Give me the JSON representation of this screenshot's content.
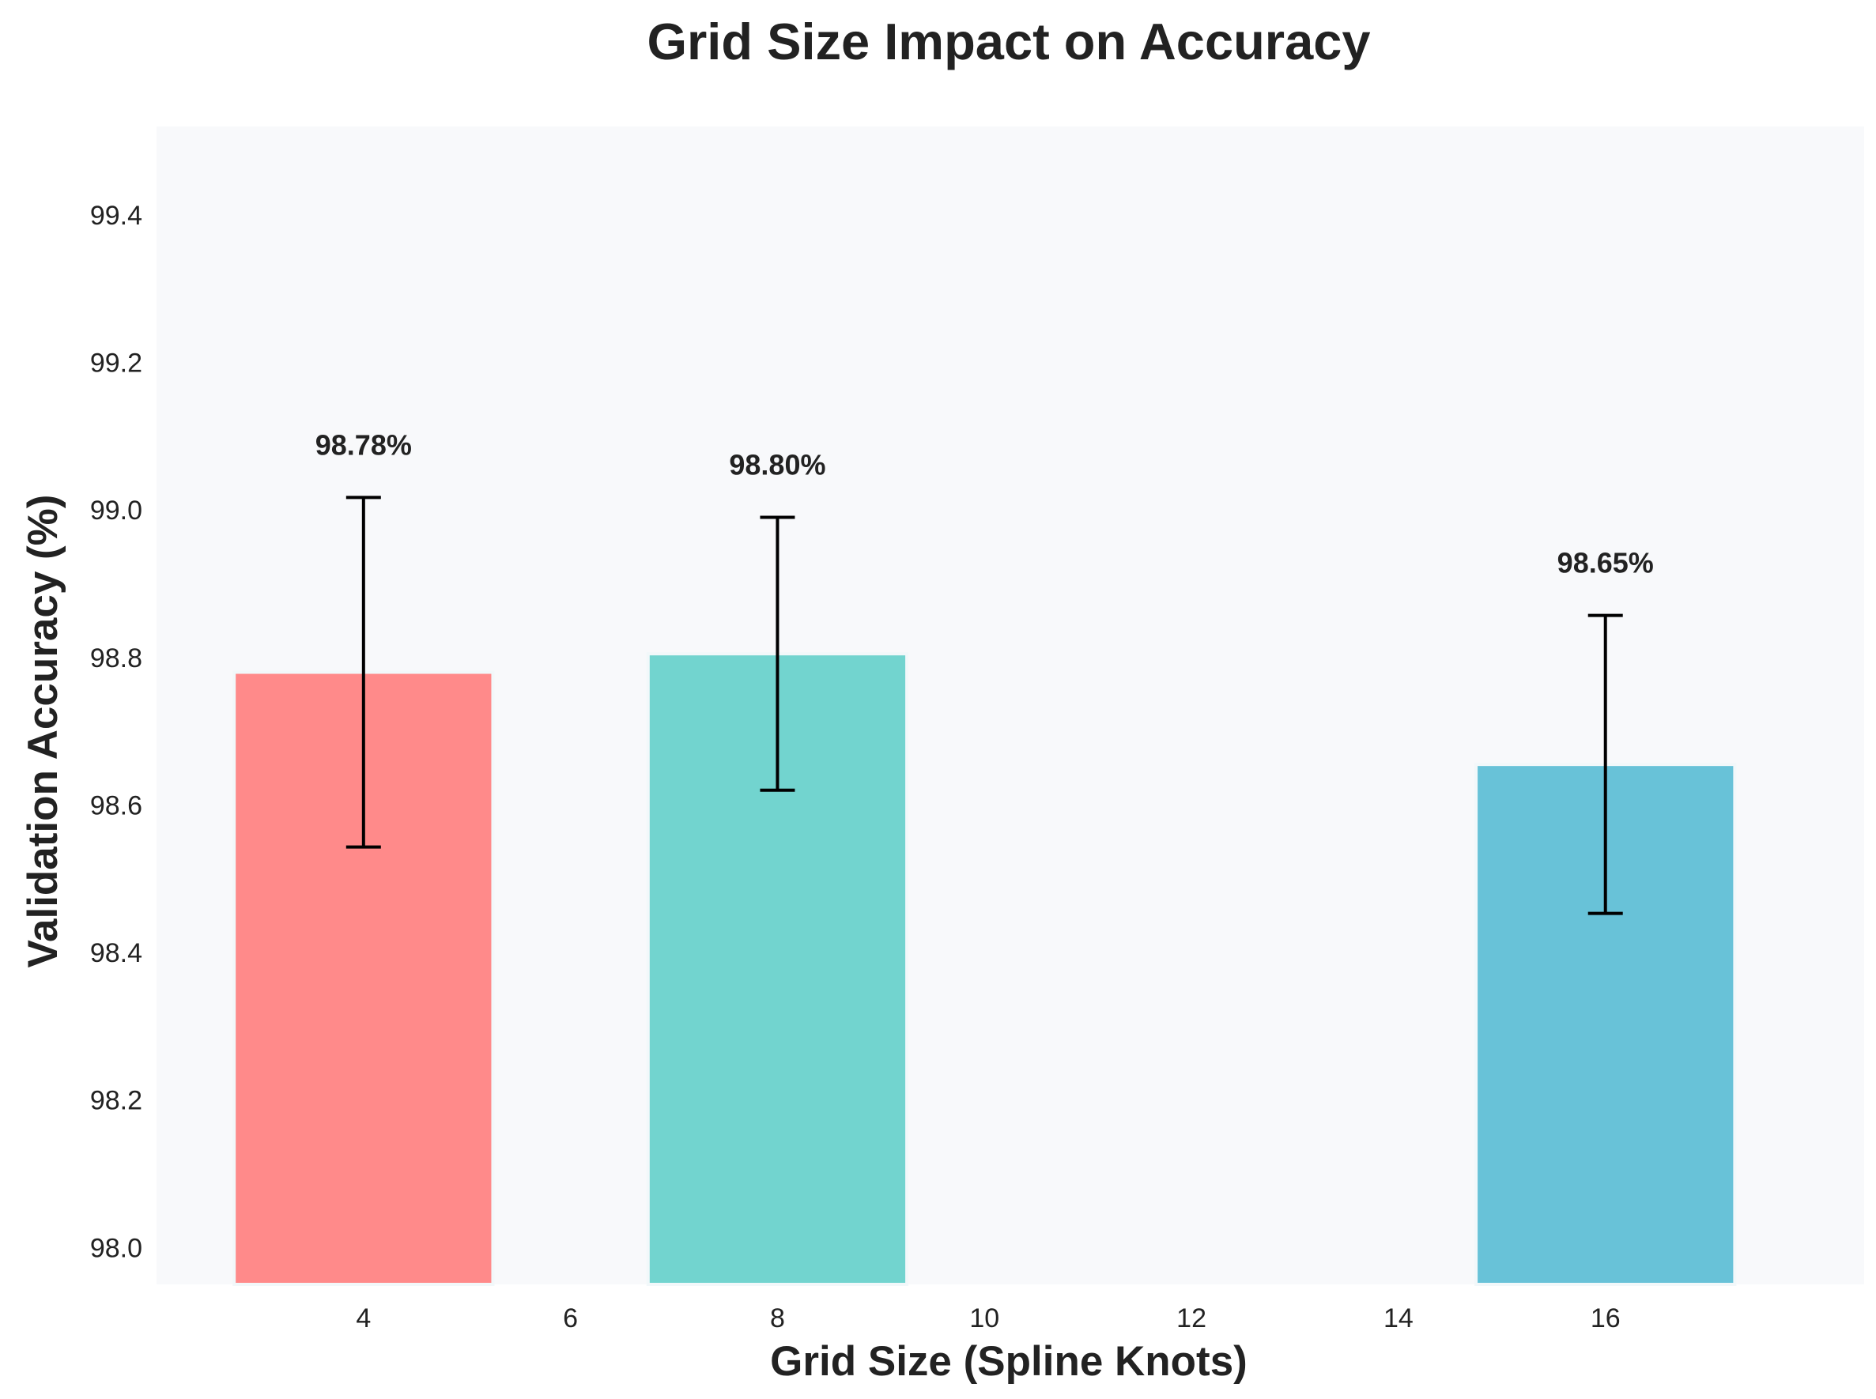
{
  "chart_data": {
    "type": "bar",
    "title": "Grid Size Impact on Accuracy",
    "xlabel": "Grid Size (Spline Knots)",
    "ylabel": "Validation Accuracy (%)",
    "xlim": [
      2,
      18.5
    ],
    "ylim": [
      97.95,
      99.52
    ],
    "xticks": [
      "4",
      "6",
      "8",
      "10",
      "12",
      "14",
      "16"
    ],
    "yticks": [
      "98.0",
      "98.2",
      "98.4",
      "98.6",
      "98.8",
      "99.0",
      "99.2",
      "99.4"
    ],
    "grid": false,
    "bar_width": 2.5,
    "bars": [
      {
        "x": 4,
        "value": 98.78,
        "error": 0.237,
        "label": "98.78%",
        "color": "#ff8a8a"
      },
      {
        "x": 8,
        "value": 98.805,
        "error": 0.185,
        "label": "98.80%",
        "color": "#72d4cf"
      },
      {
        "x": 16,
        "value": 98.655,
        "error": 0.202,
        "label": "98.65%",
        "color": "#68c2d8"
      }
    ],
    "plot_background": "#f8f9fb",
    "bar_edge_color": "#f2f8fa",
    "error_bar_color": "#000000"
  }
}
